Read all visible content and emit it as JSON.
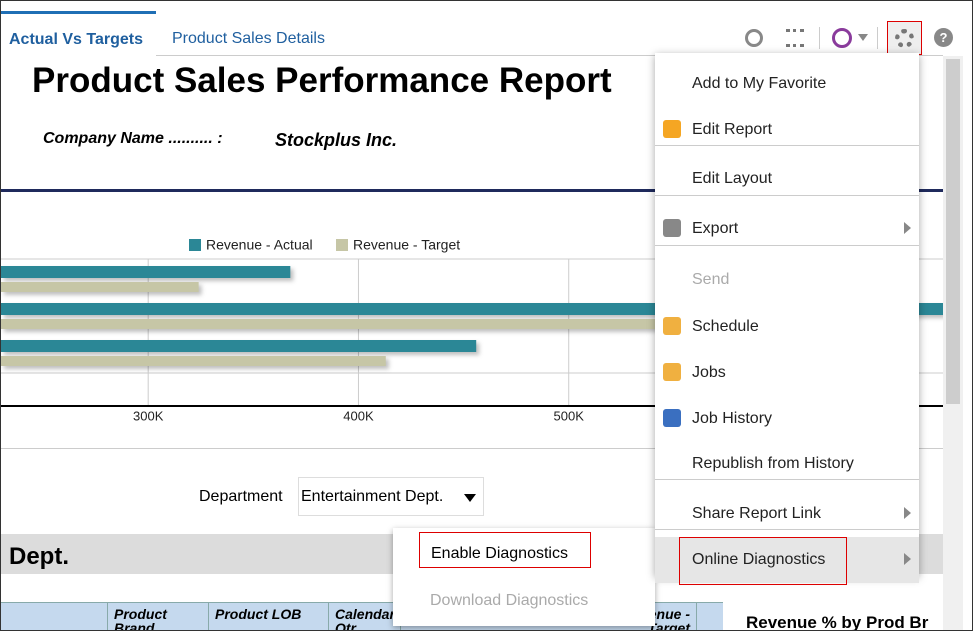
{
  "tabs": [
    "Actual Vs Targets",
    "Product Sales Details"
  ],
  "report": {
    "title": "Product Sales Performance Report",
    "company_label": "Company Name .......... :",
    "company_name": "Stockplus Inc.",
    "chart": {
      "type": "bar",
      "orientation": "horizontal",
      "categories": [
        null,
        null,
        null
      ],
      "series": [
        {
          "name": "Revenue - Actual",
          "color": "#2b8796",
          "values": [
            367600,
            678000,
            456000
          ]
        },
        {
          "name": "Revenue - Target",
          "color": "#c6c6a6",
          "values": [
            324000,
            640000,
            413000
          ]
        }
      ],
      "xlim": [
        230000,
        678000
      ],
      "xticks": [
        {
          "value": 300000,
          "label": "300K"
        },
        {
          "value": 400000,
          "label": "400K"
        },
        {
          "value": 500000,
          "label": "500K"
        }
      ],
      "grid": true
    },
    "filter_label": "Department",
    "filter_value": "Entertainment Dept.",
    "section_title": "Dept.",
    "table_headers": [
      "Product Brand",
      "Product LOB",
      "Calendar Qtr",
      "Revenue - Target"
    ],
    "side_title": "Revenue % by Prod Br"
  },
  "menu": {
    "items": [
      "Add to My Favorite",
      "Edit Report",
      "Edit Layout",
      "Export",
      "Send",
      "Schedule",
      "Jobs",
      "Job History",
      "Republish from History",
      "Share Report Link",
      "Online Diagnostics"
    ]
  },
  "submenu": {
    "items": [
      "Enable Diagnostics",
      "Download Diagnostics"
    ]
  }
}
